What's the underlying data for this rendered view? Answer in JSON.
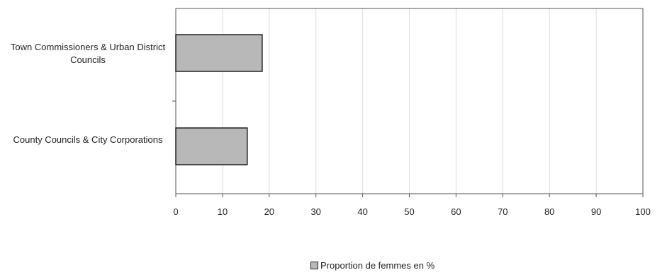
{
  "chart_data": {
    "type": "bar",
    "orientation": "horizontal",
    "categories": [
      "Town Commissioners & Urban District Councils",
      "County Councils & City Corporations"
    ],
    "series": [
      {
        "name": "Proportion de femmes en %",
        "values": [
          18.5,
          15.3
        ]
      }
    ],
    "xlim": [
      0,
      100
    ],
    "xticks": [
      "0",
      "10",
      "20",
      "30",
      "40",
      "50",
      "60",
      "70",
      "80",
      "90",
      "100"
    ],
    "grid": "vertical",
    "legend_position": "bottom-center",
    "colors": {
      "bar": "#b8b8b8",
      "bar_edge": "#222222",
      "grid": "#dcdcdc",
      "frame": "#555555"
    }
  }
}
